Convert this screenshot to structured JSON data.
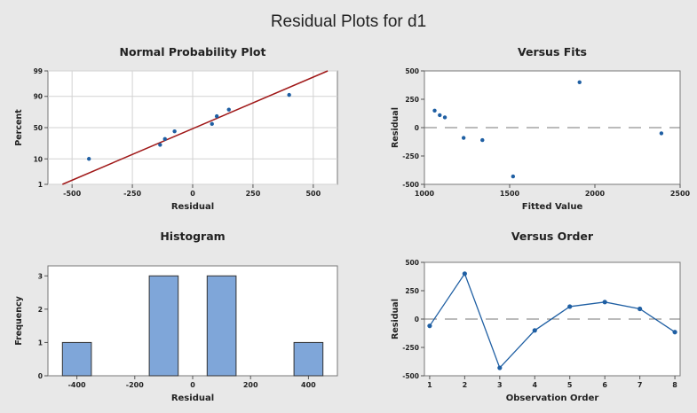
{
  "page": {
    "title": "Residual Plots for d1"
  },
  "colors": {
    "background": "#e8e8e8",
    "plot_area": "#ffffff",
    "point": "#1f5fa3",
    "fit_line": "#a01818",
    "bar_fill": "#7fa6d9",
    "bar_stroke": "#333333",
    "line": "#1f5fa3"
  },
  "chart_data": [
    {
      "id": "npp",
      "type": "scatter",
      "title": "Normal Probability Plot",
      "xlabel": "Residual",
      "ylabel": "Percent",
      "xlim": [
        -600,
        600
      ],
      "xticks": [
        -500,
        -250,
        0,
        250,
        500
      ],
      "xtick_labels": [
        "-500",
        "-250",
        "0",
        "250",
        "500"
      ],
      "yscale": "normal-probability",
      "yticks": [
        1,
        10,
        50,
        90,
        99
      ],
      "ytick_labels": [
        "1",
        "10",
        "50",
        "90",
        "99"
      ],
      "ylim": [
        1,
        99
      ],
      "grid": true,
      "points": [
        {
          "x": -430,
          "y": 10
        },
        {
          "x": -135,
          "y": 24
        },
        {
          "x": -115,
          "y": 32
        },
        {
          "x": -75,
          "y": 44
        },
        {
          "x": 80,
          "y": 56
        },
        {
          "x": 100,
          "y": 68
        },
        {
          "x": 150,
          "y": 77
        },
        {
          "x": 400,
          "y": 91
        }
      ],
      "fit_line": [
        {
          "x": -540,
          "y": 1
        },
        {
          "x": 560,
          "y": 99
        }
      ]
    },
    {
      "id": "vfits",
      "type": "scatter",
      "title": "Versus Fits",
      "xlabel": "Fitted Value",
      "ylabel": "Residual",
      "xlim": [
        1000,
        2500
      ],
      "xticks": [
        1000,
        1500,
        2000,
        2500
      ],
      "xtick_labels": [
        "1000",
        "1500",
        "2000",
        "2500"
      ],
      "ylim": [
        -500,
        500
      ],
      "yticks": [
        -500,
        -250,
        0,
        250,
        500
      ],
      "ytick_labels": [
        "-500",
        "-250",
        "0",
        "250",
        "500"
      ],
      "reference_y": 0,
      "points": [
        {
          "x": 1060,
          "y": 150
        },
        {
          "x": 1090,
          "y": 110
        },
        {
          "x": 1120,
          "y": 90
        },
        {
          "x": 1230,
          "y": -90
        },
        {
          "x": 1340,
          "y": -110
        },
        {
          "x": 1520,
          "y": -430
        },
        {
          "x": 1910,
          "y": 400
        },
        {
          "x": 2390,
          "y": -50
        }
      ]
    },
    {
      "id": "hist",
      "type": "bar",
      "title": "Histogram",
      "xlabel": "Residual",
      "ylabel": "Frequency",
      "xlim": [
        -500,
        500
      ],
      "xticks": [
        -400,
        -200,
        0,
        200,
        400
      ],
      "xtick_labels": [
        "-400",
        "-200",
        "0",
        "200",
        "400"
      ],
      "ylim": [
        0,
        3.3
      ],
      "yticks": [
        0,
        1,
        2,
        3
      ],
      "ytick_labels": [
        "0",
        "1",
        "2",
        "3"
      ],
      "bins": [
        {
          "center": -400,
          "width": 100,
          "count": 1
        },
        {
          "center": -100,
          "width": 100,
          "count": 3
        },
        {
          "center": 100,
          "width": 100,
          "count": 3
        },
        {
          "center": 400,
          "width": 100,
          "count": 1
        }
      ]
    },
    {
      "id": "vorder",
      "type": "line",
      "title": "Versus Order",
      "xlabel": "Observation Order",
      "ylabel": "Residual",
      "xlim": [
        0.85,
        8.15
      ],
      "xticks": [
        1,
        2,
        3,
        4,
        5,
        6,
        7,
        8
      ],
      "xtick_labels": [
        "1",
        "2",
        "3",
        "4",
        "5",
        "6",
        "7",
        "8"
      ],
      "ylim": [
        -500,
        500
      ],
      "yticks": [
        -500,
        -250,
        0,
        250,
        500
      ],
      "ytick_labels": [
        "-500",
        "-250",
        "0",
        "250",
        "500"
      ],
      "reference_y": 0,
      "points": [
        {
          "x": 1,
          "y": -60
        },
        {
          "x": 2,
          "y": 400
        },
        {
          "x": 3,
          "y": -430
        },
        {
          "x": 4,
          "y": -100
        },
        {
          "x": 5,
          "y": 110
        },
        {
          "x": 6,
          "y": 150
        },
        {
          "x": 7,
          "y": 90
        },
        {
          "x": 8,
          "y": -115
        }
      ]
    }
  ]
}
